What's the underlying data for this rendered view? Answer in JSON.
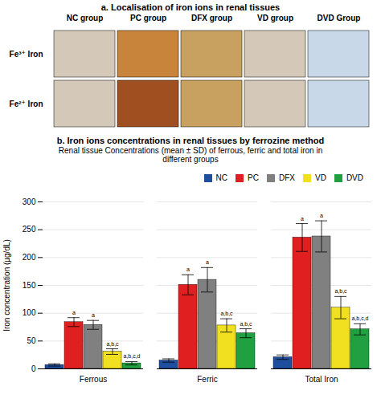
{
  "chart_data": [
    {
      "type": "image_grid",
      "title": "a. Localisation of iron ions in renal tissues",
      "columns": [
        "NC group",
        "PC group",
        "DFX group",
        "VD group",
        "DVD Group"
      ],
      "rows": [
        "Fe³⁺ Iron",
        "Fe²⁺ Iron"
      ],
      "colors": [
        [
          "#d4c9b8",
          "#c8843a",
          "#c8a060",
          "#d4c9b8",
          "#c8d8e8"
        ],
        [
          "#d4c9b8",
          "#a05020",
          "#c8a060",
          "#d4c9b8",
          "#c8d8e8"
        ]
      ]
    },
    {
      "type": "bar",
      "title": "b. Iron ions concentrations in renal tissues by ferrozine method",
      "subtitle": "Renal tissue Concentrations (mean ± SD) of ferrous, ferric and total iron in\ndifferent groups",
      "ylabel": "Iron concentration (µg/dL)",
      "categories": [
        "Ferrous",
        "Ferric",
        "Total Iron"
      ],
      "series": [
        {
          "name": "NC",
          "color": "#1f4e9e",
          "values": [
            7,
            15,
            21
          ],
          "errors": [
            2,
            3,
            4
          ],
          "annotations": [
            null,
            null,
            null
          ]
        },
        {
          "name": "PC",
          "color": "#e02020",
          "values": [
            84,
            151,
            236
          ],
          "errors": [
            8,
            18,
            25
          ],
          "annotations": [
            "a",
            "a",
            "a"
          ]
        },
        {
          "name": "DFX",
          "color": "#808080",
          "values": [
            79,
            160,
            238
          ],
          "errors": [
            8,
            22,
            28
          ],
          "annotations": [
            "a",
            "a",
            "a"
          ]
        },
        {
          "name": "VD",
          "color": "#f0e020",
          "values": [
            31,
            78,
            110
          ],
          "errors": [
            5,
            12,
            20
          ],
          "annotations": [
            "a,b,c",
            "a,b,c",
            "a,b,c"
          ]
        },
        {
          "name": "DVD",
          "color": "#20a040",
          "values": [
            10,
            64,
            71
          ],
          "errors": [
            3,
            8,
            10
          ],
          "annotations": [
            "a,b,c,d",
            "a,b,c",
            "a,b,c,d"
          ]
        }
      ],
      "ylim": [
        0,
        300
      ],
      "yticks": [
        0,
        50,
        100,
        150,
        200,
        250,
        300
      ],
      "grid": true,
      "legend": "upper right"
    }
  ]
}
